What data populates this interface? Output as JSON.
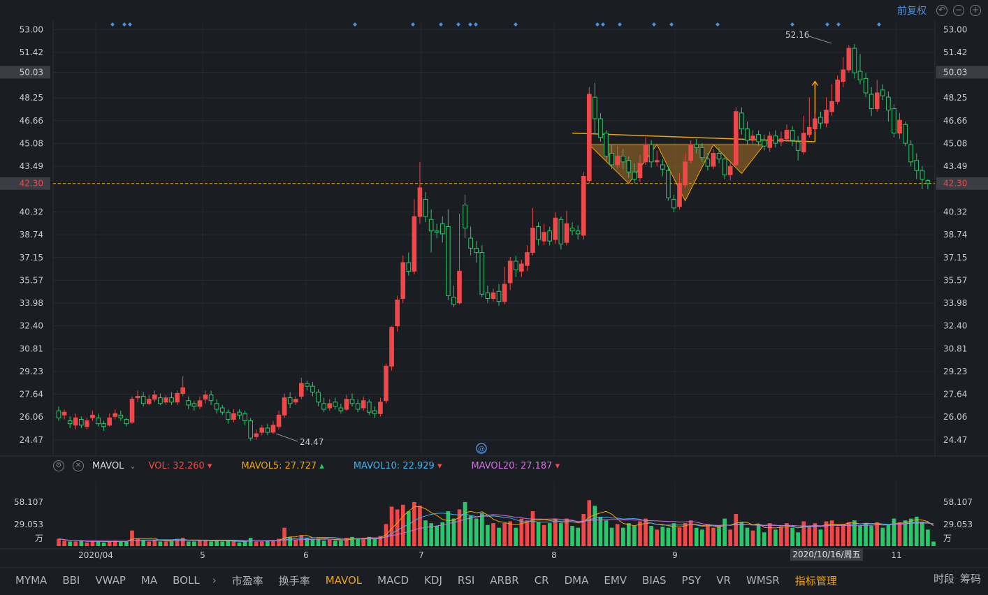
{
  "toolbar": {
    "adjust_label": "前复权"
  },
  "price_axis": {
    "labels": [
      "53.00",
      "51.42",
      "50.03",
      "48.25",
      "46.66",
      "45.08",
      "43.49",
      "42.30",
      "40.32",
      "38.74",
      "37.15",
      "35.57",
      "33.98",
      "32.40",
      "30.81",
      "29.23",
      "27.64",
      "26.06",
      "24.47"
    ],
    "highlight_current": "50.03",
    "last_price": "42.30",
    "min": 23.4,
    "max": 53.6
  },
  "annotations": {
    "high_label": "52.16",
    "low_label": "24.47",
    "date_tooltip": "2020/10/16/周五"
  },
  "x_axis": {
    "labels": [
      "2020/04",
      "5",
      "6",
      "7",
      "8",
      "9",
      "11"
    ]
  },
  "indicator": {
    "name": "MAVOL",
    "vol": "VOL: 32.260",
    "mavol5": "MAVOL5: 27.727",
    "mavol10": "MAVOL10: 22.929",
    "mavol20": "MAVOL20: 27.187",
    "axis": [
      "58.107",
      "29.053",
      "万"
    ]
  },
  "tabs": [
    "MYMA",
    "BBI",
    "VWAP",
    "MA",
    "BOLL",
    "市盈率",
    "换手率",
    "MAVOL",
    "MACD",
    "KDJ",
    "RSI",
    "ARBR",
    "CR",
    "DMA",
    "EMV",
    "BIAS",
    "PSY",
    "VR",
    "WMSR",
    "指标管理"
  ],
  "right_tabs": [
    "时段",
    "筹码"
  ],
  "colors": {
    "up": "#f04848",
    "down": "#26c96a",
    "accent": "#f0a500",
    "mavol5": "#f0a500",
    "mavol10": "#3db4f2",
    "mavol20": "#d070e0",
    "blue": "#4a90e2"
  },
  "chart_data": {
    "type": "candlestick",
    "ylim": [
      23.4,
      53.6
    ],
    "candles": [
      [
        26.5,
        26.0,
        26.8,
        25.8
      ],
      [
        26.2,
        26.4,
        26.6,
        25.9
      ],
      [
        25.8,
        25.6,
        26.1,
        25.3
      ],
      [
        25.5,
        26.0,
        26.3,
        25.2
      ],
      [
        25.9,
        25.5,
        26.1,
        25.3
      ],
      [
        25.4,
        25.8,
        26.0,
        25.2
      ],
      [
        26.0,
        26.2,
        26.5,
        25.8
      ],
      [
        26.0,
        25.6,
        26.3,
        25.4
      ],
      [
        25.6,
        25.4,
        25.8,
        25.1
      ],
      [
        25.5,
        26.0,
        26.3,
        25.4
      ],
      [
        26.1,
        26.3,
        26.6,
        25.9
      ],
      [
        26.2,
        26.0,
        26.5,
        25.8
      ],
      [
        25.9,
        25.6,
        26.0,
        25.4
      ],
      [
        25.7,
        27.3,
        27.5,
        25.6
      ],
      [
        27.4,
        27.5,
        27.9,
        27.1
      ],
      [
        27.5,
        27.0,
        27.8,
        26.8
      ],
      [
        27.0,
        27.3,
        27.6,
        26.9
      ],
      [
        27.3,
        27.6,
        27.9,
        27.1
      ],
      [
        27.4,
        27.0,
        27.7,
        26.9
      ],
      [
        27.1,
        27.4,
        27.6,
        26.9
      ],
      [
        27.4,
        27.1,
        27.8,
        26.9
      ],
      [
        27.1,
        27.7,
        27.9,
        26.9
      ],
      [
        27.7,
        28.1,
        28.9,
        27.5
      ],
      [
        27.2,
        26.9,
        27.5,
        26.6
      ],
      [
        27.0,
        26.8,
        27.2,
        26.5
      ],
      [
        26.8,
        27.2,
        27.5,
        26.6
      ],
      [
        27.3,
        27.6,
        27.9,
        27.0
      ],
      [
        27.6,
        27.2,
        27.9,
        26.9
      ],
      [
        27.0,
        26.6,
        27.3,
        26.3
      ],
      [
        26.7,
        26.4,
        26.9,
        26.2
      ],
      [
        26.4,
        25.9,
        26.6,
        25.6
      ],
      [
        25.9,
        26.3,
        26.6,
        25.7
      ],
      [
        26.4,
        26.2,
        26.6,
        25.9
      ],
      [
        26.3,
        25.8,
        26.5,
        25.5
      ],
      [
        25.8,
        24.6,
        26.0,
        24.4
      ],
      [
        24.7,
        24.9,
        25.2,
        24.5
      ],
      [
        25.0,
        25.3,
        25.5,
        24.8
      ],
      [
        25.3,
        25.0,
        25.6,
        24.8
      ],
      [
        25.0,
        25.5,
        25.8,
        24.9
      ],
      [
        25.4,
        26.2,
        26.5,
        25.2
      ],
      [
        26.2,
        27.4,
        27.7,
        26.0
      ],
      [
        27.4,
        27.0,
        27.8,
        26.7
      ],
      [
        27.1,
        27.3,
        27.5,
        26.9
      ],
      [
        27.5,
        28.4,
        28.8,
        27.3
      ],
      [
        28.4,
        28.2,
        28.6,
        27.9
      ],
      [
        28.2,
        27.8,
        28.5,
        27.5
      ],
      [
        27.8,
        27.1,
        28.0,
        26.8
      ],
      [
        27.0,
        26.6,
        27.4,
        26.4
      ],
      [
        26.7,
        27.0,
        27.3,
        26.5
      ],
      [
        27.1,
        26.8,
        27.4,
        26.6
      ],
      [
        26.7,
        26.5,
        27.0,
        26.3
      ],
      [
        26.6,
        27.3,
        27.6,
        26.5
      ],
      [
        27.3,
        27.0,
        27.7,
        26.8
      ],
      [
        27.0,
        26.6,
        27.3,
        26.4
      ],
      [
        26.7,
        27.2,
        27.5,
        26.5
      ],
      [
        27.1,
        26.4,
        27.3,
        26.2
      ],
      [
        26.5,
        26.3,
        26.8,
        26.0
      ],
      [
        26.3,
        27.1,
        27.4,
        26.1
      ],
      [
        27.2,
        29.6,
        29.8,
        27.0
      ],
      [
        29.6,
        32.3,
        32.4,
        29.3
      ],
      [
        32.4,
        34.2,
        34.5,
        32.0
      ],
      [
        34.3,
        36.8,
        37.3,
        34.0
      ],
      [
        36.8,
        36.2,
        37.5,
        35.9
      ],
      [
        36.2,
        40.0,
        41.2,
        36.0
      ],
      [
        40.0,
        42.0,
        43.8,
        39.5
      ],
      [
        41.2,
        40.0,
        41.7,
        39.6
      ],
      [
        39.8,
        39.0,
        40.5,
        37.5
      ],
      [
        39.0,
        38.9,
        39.5,
        38.5
      ],
      [
        39.5,
        38.8,
        40.0,
        38.2
      ],
      [
        39.3,
        34.5,
        40.5,
        34.2
      ],
      [
        34.4,
        33.9,
        35.2,
        33.7
      ],
      [
        34.0,
        36.2,
        40.2,
        33.9
      ],
      [
        40.8,
        39.2,
        41.5,
        38.5
      ],
      [
        38.5,
        37.8,
        39.3,
        37.3
      ],
      [
        37.8,
        37.5,
        38.3,
        36.8
      ],
      [
        37.5,
        34.6,
        38.0,
        34.4
      ],
      [
        34.7,
        34.3,
        35.2,
        34.0
      ],
      [
        34.3,
        34.7,
        35.0,
        34.1
      ],
      [
        34.8,
        34.1,
        35.3,
        33.8
      ],
      [
        34.1,
        35.3,
        36.5,
        33.9
      ],
      [
        35.4,
        36.9,
        37.2,
        34.9
      ],
      [
        36.9,
        36.3,
        37.3,
        35.8
      ],
      [
        36.2,
        36.7,
        37.0,
        35.8
      ],
      [
        36.6,
        37.5,
        38.0,
        36.2
      ],
      [
        37.5,
        39.2,
        40.6,
        37.3
      ],
      [
        39.3,
        38.4,
        39.6,
        38.0
      ],
      [
        38.3,
        38.9,
        39.5,
        38.0
      ],
      [
        39.0,
        38.3,
        39.3,
        38.0
      ],
      [
        38.4,
        39.9,
        40.3,
        38.1
      ],
      [
        39.8,
        38.1,
        40.0,
        37.7
      ],
      [
        38.2,
        39.5,
        40.4,
        38.0
      ],
      [
        39.2,
        39.0,
        39.6,
        38.7
      ],
      [
        39.0,
        38.8,
        39.4,
        38.4
      ],
      [
        38.7,
        42.8,
        43.1,
        38.4
      ],
      [
        42.5,
        48.5,
        49.0,
        42.3
      ],
      [
        48.3,
        46.8,
        49.3,
        45.8
      ],
      [
        46.8,
        45.5,
        47.2,
        45.2
      ],
      [
        45.8,
        44.2,
        46.0,
        43.9
      ],
      [
        44.4,
        43.6,
        45.0,
        43.3
      ],
      [
        43.6,
        44.2,
        44.9,
        43.3
      ],
      [
        44.2,
        43.8,
        44.7,
        43.3
      ],
      [
        43.9,
        43.1,
        44.2,
        42.7
      ],
      [
        43.1,
        42.6,
        43.7,
        42.3
      ],
      [
        42.7,
        43.7,
        44.3,
        42.4
      ],
      [
        43.8,
        45.0,
        45.5,
        43.6
      ],
      [
        45.0,
        43.8,
        45.3,
        43.4
      ],
      [
        43.8,
        43.9,
        44.6,
        43.5
      ],
      [
        43.6,
        43.3,
        44.0,
        42.8
      ],
      [
        43.2,
        41.3,
        43.5,
        41.1
      ],
      [
        41.2,
        40.6,
        41.5,
        40.3
      ],
      [
        40.7,
        42.3,
        43.0,
        40.5
      ],
      [
        42.2,
        43.8,
        44.4,
        42.0
      ],
      [
        43.9,
        45.0,
        45.3,
        43.7
      ],
      [
        45.0,
        44.8,
        45.4,
        44.4
      ],
      [
        44.8,
        44.1,
        45.1,
        43.8
      ],
      [
        44.0,
        43.5,
        44.4,
        43.2
      ],
      [
        43.5,
        44.4,
        44.7,
        43.3
      ],
      [
        44.4,
        44.0,
        44.8,
        43.7
      ],
      [
        44.0,
        42.9,
        44.3,
        42.6
      ],
      [
        42.9,
        43.5,
        43.8,
        42.5
      ],
      [
        43.6,
        47.3,
        47.6,
        43.5
      ],
      [
        47.2,
        46.1,
        47.6,
        45.7
      ],
      [
        46.1,
        45.3,
        46.6,
        45.0
      ],
      [
        45.3,
        45.6,
        46.0,
        45.0
      ],
      [
        45.7,
        45.2,
        46.0,
        44.9
      ],
      [
        45.3,
        44.9,
        45.7,
        44.6
      ],
      [
        44.8,
        45.6,
        45.9,
        44.5
      ],
      [
        45.6,
        45.1,
        46.0,
        44.8
      ],
      [
        45.2,
        45.4,
        45.9,
        44.9
      ],
      [
        45.4,
        46.0,
        46.4,
        45.2
      ],
      [
        46.0,
        45.3,
        46.3,
        44.9
      ],
      [
        45.2,
        44.6,
        45.6,
        43.9
      ],
      [
        44.5,
        45.8,
        47.0,
        44.3
      ],
      [
        45.7,
        46.2,
        48.3,
        45.5
      ],
      [
        46.1,
        46.8,
        47.2,
        45.9
      ],
      [
        46.9,
        46.5,
        47.3,
        46.1
      ],
      [
        46.5,
        47.4,
        48.3,
        46.2
      ],
      [
        47.3,
        48.0,
        49.2,
        47.0
      ],
      [
        48.0,
        49.5,
        49.8,
        47.8
      ],
      [
        49.4,
        50.2,
        51.1,
        49.0
      ],
      [
        50.2,
        51.7,
        51.9,
        50.0
      ],
      [
        51.7,
        50.0,
        52.0,
        49.6
      ],
      [
        50.1,
        49.5,
        51.3,
        49.2
      ],
      [
        49.6,
        48.6,
        50.0,
        48.3
      ],
      [
        48.5,
        47.5,
        49.0,
        47.0
      ],
      [
        47.5,
        48.6,
        49.5,
        47.3
      ],
      [
        48.8,
        48.4,
        49.2,
        48.1
      ],
      [
        48.3,
        47.4,
        48.7,
        46.6
      ],
      [
        47.5,
        45.8,
        47.8,
        45.5
      ],
      [
        45.8,
        46.7,
        47.2,
        45.4
      ],
      [
        46.4,
        45.1,
        46.6,
        44.9
      ],
      [
        45.0,
        43.8,
        45.3,
        43.5
      ],
      [
        43.9,
        43.2,
        44.4,
        42.6
      ],
      [
        43.2,
        42.6,
        43.5,
        41.9
      ],
      [
        42.5,
        42.3,
        42.6,
        41.9
      ]
    ],
    "volume": [
      [
        8,
        1
      ],
      [
        6,
        1
      ],
      [
        5,
        0
      ],
      [
        5,
        1
      ],
      [
        6,
        0
      ],
      [
        4,
        1
      ],
      [
        6,
        1
      ],
      [
        5,
        0
      ],
      [
        4,
        0
      ],
      [
        5,
        1
      ],
      [
        6,
        1
      ],
      [
        5,
        0
      ],
      [
        5,
        0
      ],
      [
        17,
        1
      ],
      [
        8,
        1
      ],
      [
        6,
        0
      ],
      [
        5,
        1
      ],
      [
        7,
        1
      ],
      [
        5,
        0
      ],
      [
        5,
        1
      ],
      [
        6,
        0
      ],
      [
        8,
        1
      ],
      [
        9,
        1
      ],
      [
        5,
        0
      ],
      [
        5,
        0
      ],
      [
        6,
        1
      ],
      [
        7,
        1
      ],
      [
        5,
        0
      ],
      [
        6,
        0
      ],
      [
        5,
        0
      ],
      [
        6,
        0
      ],
      [
        5,
        1
      ],
      [
        4,
        0
      ],
      [
        5,
        0
      ],
      [
        9,
        0
      ],
      [
        5,
        1
      ],
      [
        5,
        1
      ],
      [
        6,
        0
      ],
      [
        6,
        1
      ],
      [
        8,
        1
      ],
      [
        20,
        1
      ],
      [
        10,
        0
      ],
      [
        7,
        1
      ],
      [
        12,
        1
      ],
      [
        9,
        0
      ],
      [
        8,
        0
      ],
      [
        8,
        0
      ],
      [
        6,
        0
      ],
      [
        7,
        1
      ],
      [
        6,
        0
      ],
      [
        6,
        0
      ],
      [
        9,
        1
      ],
      [
        10,
        0
      ],
      [
        8,
        0
      ],
      [
        9,
        1
      ],
      [
        10,
        0
      ],
      [
        8,
        0
      ],
      [
        11,
        1
      ],
      [
        24,
        1
      ],
      [
        43,
        1
      ],
      [
        40,
        1
      ],
      [
        45,
        1
      ],
      [
        38,
        0
      ],
      [
        48,
        1
      ],
      [
        44,
        1
      ],
      [
        28,
        0
      ],
      [
        25,
        0
      ],
      [
        22,
        0
      ],
      [
        26,
        0
      ],
      [
        38,
        0
      ],
      [
        30,
        0
      ],
      [
        40,
        1
      ],
      [
        48,
        0
      ],
      [
        33,
        0
      ],
      [
        30,
        0
      ],
      [
        36,
        0
      ],
      [
        23,
        0
      ],
      [
        25,
        1
      ],
      [
        20,
        0
      ],
      [
        25,
        1
      ],
      [
        27,
        1
      ],
      [
        20,
        0
      ],
      [
        30,
        1
      ],
      [
        28,
        1
      ],
      [
        38,
        1
      ],
      [
        26,
        0
      ],
      [
        23,
        1
      ],
      [
        25,
        0
      ],
      [
        30,
        1
      ],
      [
        25,
        0
      ],
      [
        30,
        1
      ],
      [
        22,
        0
      ],
      [
        20,
        0
      ],
      [
        35,
        1
      ],
      [
        50,
        1
      ],
      [
        44,
        0
      ],
      [
        32,
        0
      ],
      [
        28,
        0
      ],
      [
        20,
        0
      ],
      [
        24,
        1
      ],
      [
        20,
        0
      ],
      [
        25,
        0
      ],
      [
        22,
        0
      ],
      [
        27,
        1
      ],
      [
        30,
        1
      ],
      [
        22,
        0
      ],
      [
        18,
        1
      ],
      [
        21,
        0
      ],
      [
        20,
        0
      ],
      [
        25,
        0
      ],
      [
        20,
        1
      ],
      [
        25,
        1
      ],
      [
        28,
        1
      ],
      [
        20,
        0
      ],
      [
        18,
        0
      ],
      [
        24,
        1
      ],
      [
        20,
        1
      ],
      [
        22,
        0
      ],
      [
        30,
        0
      ],
      [
        18,
        1
      ],
      [
        35,
        1
      ],
      [
        26,
        0
      ],
      [
        20,
        0
      ],
      [
        17,
        1
      ],
      [
        24,
        0
      ],
      [
        15,
        0
      ],
      [
        25,
        1
      ],
      [
        18,
        0
      ],
      [
        21,
        1
      ],
      [
        25,
        1
      ],
      [
        20,
        0
      ],
      [
        15,
        0
      ],
      [
        27,
        1
      ],
      [
        22,
        1
      ],
      [
        25,
        1
      ],
      [
        18,
        0
      ],
      [
        27,
        1
      ],
      [
        28,
        1
      ],
      [
        21,
        1
      ],
      [
        24,
        1
      ],
      [
        26,
        1
      ],
      [
        28,
        0
      ],
      [
        22,
        0
      ],
      [
        25,
        0
      ],
      [
        22,
        0
      ],
      [
        26,
        1
      ],
      [
        20,
        0
      ],
      [
        23,
        0
      ],
      [
        30,
        0
      ],
      [
        26,
        1
      ],
      [
        28,
        0
      ],
      [
        30,
        0
      ],
      [
        32,
        0
      ],
      [
        26,
        0
      ],
      [
        18,
        0
      ],
      [
        5,
        0
      ]
    ]
  }
}
